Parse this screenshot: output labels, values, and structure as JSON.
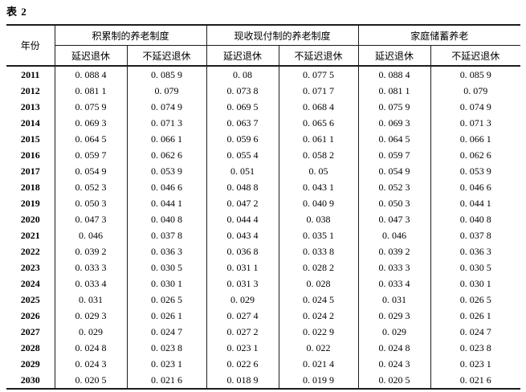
{
  "page": {
    "table_label": "表 2"
  },
  "colors": {
    "background": "#ffffff",
    "border": "#1c1c1c",
    "text": "#000000"
  },
  "table": {
    "year_header": "年份",
    "groups": [
      {
        "label": "积累制的养老制度",
        "sub": [
          "延迟退休",
          "不延迟退休"
        ]
      },
      {
        "label": "现收现付制的养老制度",
        "sub": [
          "延迟退休",
          "不延迟退休"
        ]
      },
      {
        "label": "家庭储蓄养老",
        "sub": [
          "延迟退休",
          "不延迟退休"
        ]
      }
    ],
    "rows": [
      {
        "year": "2011",
        "values": [
          "0. 088 4",
          "0. 085 9",
          "0. 08",
          "0. 077 5",
          "0. 088 4",
          "0. 085 9"
        ]
      },
      {
        "year": "2012",
        "values": [
          "0. 081 1",
          "0. 079",
          "0. 073 8",
          "0. 071 7",
          "0. 081 1",
          "0. 079"
        ]
      },
      {
        "year": "2013",
        "values": [
          "0. 075 9",
          "0. 074 9",
          "0. 069 5",
          "0. 068 4",
          "0. 075 9",
          "0. 074 9"
        ]
      },
      {
        "year": "2014",
        "values": [
          "0. 069 3",
          "0. 071 3",
          "0. 063 7",
          "0. 065 6",
          "0. 069 3",
          "0. 071 3"
        ]
      },
      {
        "year": "2015",
        "values": [
          "0. 064 5",
          "0. 066 1",
          "0. 059 6",
          "0. 061 1",
          "0. 064 5",
          "0. 066 1"
        ]
      },
      {
        "year": "2016",
        "values": [
          "0. 059 7",
          "0. 062 6",
          "0. 055 4",
          "0. 058 2",
          "0. 059 7",
          "0. 062 6"
        ]
      },
      {
        "year": "2017",
        "values": [
          "0. 054 9",
          "0. 053 9",
          "0. 051",
          "0. 05",
          "0. 054 9",
          "0. 053 9"
        ]
      },
      {
        "year": "2018",
        "values": [
          "0. 052 3",
          "0. 046 6",
          "0. 048 8",
          "0. 043 1",
          "0. 052 3",
          "0. 046 6"
        ]
      },
      {
        "year": "2019",
        "values": [
          "0. 050 3",
          "0. 044 1",
          "0. 047 2",
          "0. 040 9",
          "0. 050 3",
          "0. 044 1"
        ]
      },
      {
        "year": "2020",
        "values": [
          "0. 047 3",
          "0. 040 8",
          "0. 044 4",
          "0. 038",
          "0. 047 3",
          "0. 040 8"
        ]
      },
      {
        "year": "2021",
        "values": [
          "0. 046",
          "0. 037 8",
          "0. 043 4",
          "0. 035 1",
          "0. 046",
          "0. 037 8"
        ]
      },
      {
        "year": "2022",
        "values": [
          "0. 039 2",
          "0. 036 3",
          "0. 036 8",
          "0. 033 8",
          "0. 039 2",
          "0. 036 3"
        ]
      },
      {
        "year": "2023",
        "values": [
          "0. 033 3",
          "0. 030 5",
          "0. 031 1",
          "0. 028 2",
          "0. 033 3",
          "0. 030 5"
        ]
      },
      {
        "year": "2024",
        "values": [
          "0. 033 4",
          "0. 030 1",
          "0. 031 3",
          "0. 028",
          "0. 033 4",
          "0. 030 1"
        ]
      },
      {
        "year": "2025",
        "values": [
          "0. 031",
          "0. 026 5",
          "0. 029",
          "0. 024 5",
          "0. 031",
          "0. 026 5"
        ]
      },
      {
        "year": "2026",
        "values": [
          "0. 029 3",
          "0. 026 1",
          "0. 027 4",
          "0. 024 2",
          "0. 029 3",
          "0. 026 1"
        ]
      },
      {
        "year": "2027",
        "values": [
          "0. 029",
          "0. 024 7",
          "0. 027 2",
          "0. 022 9",
          "0. 029",
          "0. 024 7"
        ]
      },
      {
        "year": "2028",
        "values": [
          "0. 024 8",
          "0. 023 8",
          "0. 023 1",
          "0. 022",
          "0. 024 8",
          "0. 023 8"
        ]
      },
      {
        "year": "2029",
        "values": [
          "0. 024 3",
          "0. 023 1",
          "0. 022 6",
          "0. 021 4",
          "0. 024 3",
          "0. 023 1"
        ]
      },
      {
        "year": "2030",
        "values": [
          "0. 020 5",
          "0. 021 6",
          "0. 018 9",
          "0. 019 9",
          "0. 020 5",
          "0. 021 6"
        ]
      }
    ]
  }
}
